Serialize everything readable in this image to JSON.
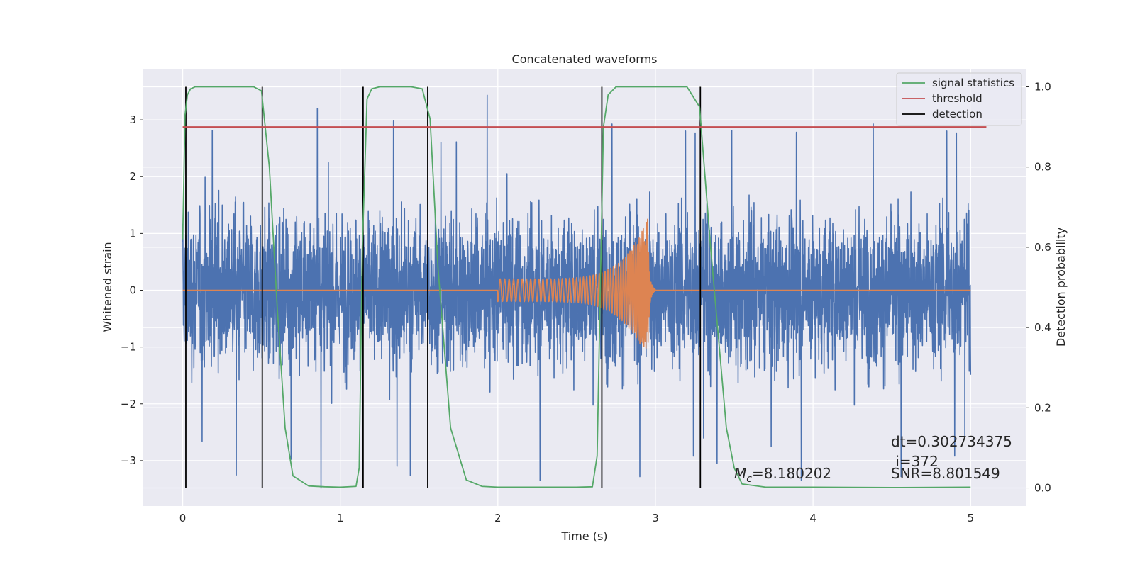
{
  "chart_data": {
    "type": "line",
    "title": "Concatenated waveforms",
    "xlabel": "Time (s)",
    "ylabel": "Whitened strain",
    "y2label": "Detection probability",
    "xlim": [
      -0.25,
      5.35
    ],
    "ylim": [
      -3.8,
      3.9
    ],
    "y2lim": [
      -0.045,
      1.045
    ],
    "x_ticks": [
      0,
      1,
      2,
      3,
      4,
      5
    ],
    "y_ticks": [
      -3,
      -2,
      -1,
      0,
      1,
      2,
      3
    ],
    "y2_ticks": [
      0.0,
      0.2,
      0.4,
      0.6,
      0.8,
      1.0
    ],
    "grid": true,
    "legend_position": "top-right",
    "legend": [
      "signal statistics",
      "threshold",
      "detection"
    ],
    "series": [
      {
        "name": "",
        "axis": "left",
        "color": "#4c72b0",
        "kind": "noise",
        "x_range": [
          0,
          5
        ],
        "amplitude_std": 0.95,
        "approx_range": [
          -3.5,
          3.55
        ]
      },
      {
        "name": "",
        "axis": "left",
        "color": "#dd8452",
        "kind": "chirp",
        "x_range": [
          0,
          5
        ],
        "chirp_start": 2.0,
        "chirp_merger": 2.95,
        "start_amplitude": 0.2,
        "peak_amplitude": 1.25
      },
      {
        "name": "signal statistics",
        "axis": "right",
        "color": "#55a868",
        "x": [
          0.0,
          0.015,
          0.03,
          0.05,
          0.08,
          0.1,
          0.3,
          0.45,
          0.5,
          0.55,
          0.6,
          0.65,
          0.7,
          0.8,
          0.9,
          1.0,
          1.1,
          1.12,
          1.14,
          1.17,
          1.2,
          1.25,
          1.45,
          1.52,
          1.57,
          1.62,
          1.7,
          1.8,
          1.9,
          2.0,
          2.5,
          2.6,
          2.63,
          2.67,
          2.7,
          2.75,
          3.0,
          3.2,
          3.28,
          3.35,
          3.45,
          3.5,
          3.55,
          3.7,
          4.0,
          4.5,
          5.0
        ],
        "y": [
          0.62,
          0.93,
          0.98,
          0.995,
          1.0,
          1.0,
          1.0,
          1.0,
          0.99,
          0.8,
          0.45,
          0.15,
          0.03,
          0.005,
          0.003,
          0.002,
          0.004,
          0.05,
          0.6,
          0.97,
          0.995,
          1.0,
          1.0,
          0.995,
          0.92,
          0.55,
          0.15,
          0.02,
          0.004,
          0.002,
          0.002,
          0.003,
          0.08,
          0.9,
          0.98,
          1.0,
          1.0,
          1.0,
          0.95,
          0.6,
          0.15,
          0.05,
          0.01,
          0.002,
          0.002,
          0.001,
          0.002
        ]
      },
      {
        "name": "threshold",
        "axis": "right",
        "color": "#c44e52",
        "x": [
          0.0,
          5.1
        ],
        "y": [
          0.9,
          0.9
        ]
      }
    ],
    "detections": [
      0.02,
      0.505,
      1.145,
      1.555,
      2.66,
      3.285
    ],
    "annotations": {
      "dt": "dt=0.302734375",
      "i": " i=372",
      "mc_symbol": "M",
      "mc_subscript": "c",
      "mc_value": "=8.180202",
      "snr": "SNR=8.801549"
    }
  }
}
